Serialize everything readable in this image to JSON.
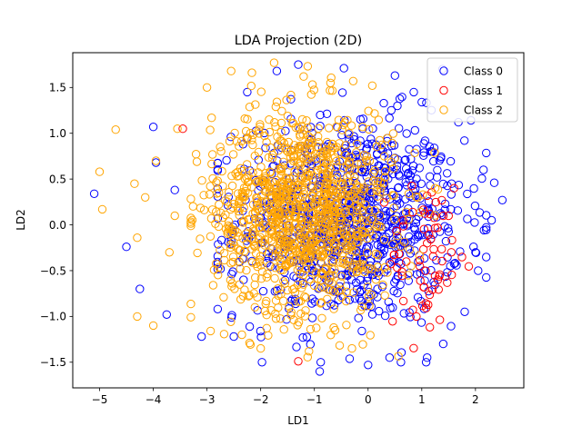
{
  "chart_data": {
    "type": "scatter",
    "title": "LDA Projection (2D)",
    "xlabel": "LD1",
    "ylabel": "LD2",
    "xlim": [
      -5.5,
      2.9
    ],
    "ylim": [
      -1.78,
      1.88
    ],
    "xticks": [
      -5,
      -4,
      -3,
      -2,
      -1,
      0,
      1,
      2
    ],
    "yticks": [
      -1.5,
      -1.0,
      -0.5,
      0.0,
      0.5,
      1.0,
      1.5
    ],
    "xtick_labels": [
      "−5",
      "−4",
      "−3",
      "−2",
      "−1",
      "0",
      "1",
      "2"
    ],
    "ytick_labels": [
      "−1.5",
      "−1.0",
      "−0.5",
      "0.0",
      "0.5",
      "1.0",
      "1.5"
    ],
    "grid": false,
    "legend_position": "top-right",
    "marker": "hollow-circle",
    "series": [
      {
        "name": "Class 0",
        "color": "#0000ff",
        "cloud": {
          "cx": -0.35,
          "cy": 0.05,
          "sx": 1.05,
          "sy": 0.55,
          "count": 900
        },
        "dense_region": {
          "x_range": [
            -2.8,
            2.2
          ],
          "y_range": [
            -1.5,
            1.7
          ]
        },
        "points": [
          [
            -5.1,
            0.34
          ],
          [
            -4.5,
            -0.24
          ],
          [
            -4.25,
            -0.7
          ],
          [
            -4.0,
            1.07
          ],
          [
            -3.95,
            0.68
          ],
          [
            -3.6,
            0.38
          ],
          [
            -3.75,
            -0.98
          ],
          [
            -3.1,
            -1.22
          ],
          [
            -2.25,
            1.45
          ],
          [
            -1.3,
            1.75
          ],
          [
            -0.45,
            1.71
          ],
          [
            0.5,
            1.63
          ],
          [
            1.0,
            1.34
          ],
          [
            0.0,
            -1.53
          ],
          [
            -0.9,
            -1.6
          ],
          [
            1.1,
            -1.45
          ],
          [
            1.4,
            -1.3
          ],
          [
            2.05,
            -0.5
          ],
          [
            2.5,
            0.27
          ],
          [
            2.35,
            0.46
          ],
          [
            2.15,
            0.6
          ],
          [
            2.3,
            0.05
          ],
          [
            2.0,
            -0.3
          ],
          [
            1.8,
            -0.95
          ],
          [
            0.85,
            1.45
          ],
          [
            -1.7,
            1.68
          ],
          [
            -2.8,
            -0.92
          ],
          [
            -2.5,
            -1.22
          ],
          [
            0.4,
            -1.45
          ],
          [
            1.2,
            0.8
          ]
        ]
      },
      {
        "name": "Class 1",
        "color": "#ff0000",
        "cloud": {
          "cx": 1.1,
          "cy": -0.35,
          "sx": 0.35,
          "sy": 0.45,
          "count": 60
        },
        "dense_region": {
          "x_range": [
            0.2,
            1.9
          ],
          "y_range": [
            -1.5,
            0.5
          ]
        },
        "points": [
          [
            -1.3,
            -1.49
          ],
          [
            -3.45,
            1.05
          ],
          [
            1.5,
            0.1
          ],
          [
            1.55,
            -0.3
          ],
          [
            1.3,
            -0.6
          ],
          [
            1.6,
            0.4
          ],
          [
            0.9,
            -1.0
          ],
          [
            1.1,
            -0.2
          ]
        ]
      },
      {
        "name": "Class 2",
        "color": "#ffa500",
        "cloud": {
          "cx": -1.2,
          "cy": 0.15,
          "sx": 0.85,
          "sy": 0.55,
          "count": 1100
        },
        "dense_region": {
          "x_range": [
            -3.3,
            1.3
          ],
          "y_range": [
            -1.45,
            1.75
          ]
        },
        "points": [
          [
            -5.0,
            0.58
          ],
          [
            -4.95,
            0.17
          ],
          [
            -4.7,
            1.04
          ],
          [
            -4.35,
            0.45
          ],
          [
            -4.3,
            -0.14
          ],
          [
            -4.15,
            0.3
          ],
          [
            -4.3,
            -1.0
          ],
          [
            -4.0,
            -1.1
          ],
          [
            -3.95,
            0.7
          ],
          [
            -3.55,
            1.05
          ],
          [
            -3.0,
            1.5
          ],
          [
            -2.55,
            1.68
          ],
          [
            -1.75,
            1.77
          ],
          [
            -1.2,
            1.62
          ],
          [
            -0.7,
            1.55
          ],
          [
            -1.1,
            -1.38
          ],
          [
            -2.35,
            -1.2
          ],
          [
            -2.0,
            -1.35
          ],
          [
            0.8,
            -0.45
          ],
          [
            1.25,
            0.4
          ],
          [
            -3.7,
            -0.3
          ],
          [
            -3.6,
            0.1
          ],
          [
            -0.3,
            -1.35
          ],
          [
            0.3,
            0.75
          ]
        ]
      }
    ]
  }
}
